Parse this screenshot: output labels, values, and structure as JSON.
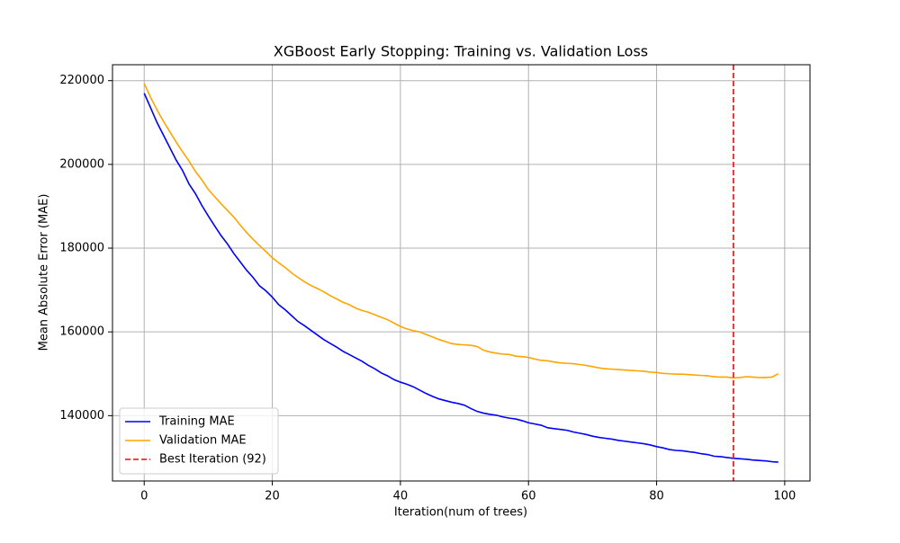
{
  "chart_data": {
    "type": "line",
    "title": "XGBoost Early Stopping: Training vs. Validation Loss",
    "xlabel": "Iteration(num of trees)",
    "ylabel": "Mean Absolute Error (MAE)",
    "x": [
      0,
      1,
      2,
      3,
      4,
      5,
      6,
      7,
      8,
      9,
      10,
      11,
      12,
      13,
      14,
      15,
      16,
      17,
      18,
      19,
      20,
      21,
      22,
      23,
      24,
      25,
      26,
      27,
      28,
      29,
      30,
      31,
      32,
      33,
      34,
      35,
      36,
      37,
      38,
      39,
      40,
      41,
      42,
      43,
      44,
      45,
      46,
      47,
      48,
      49,
      50,
      51,
      52,
      53,
      54,
      55,
      56,
      57,
      58,
      59,
      60,
      61,
      62,
      63,
      64,
      65,
      66,
      67,
      68,
      69,
      70,
      71,
      72,
      73,
      74,
      75,
      76,
      77,
      78,
      79,
      80,
      81,
      82,
      83,
      84,
      85,
      86,
      87,
      88,
      89,
      90,
      91,
      92,
      93,
      94,
      95,
      96,
      97,
      98,
      99
    ],
    "series": [
      {
        "name": "Training MAE",
        "color": "#0000ff",
        "values": [
          217000,
          213500,
          210000,
          207000,
          204000,
          201000,
          198500,
          195300,
          193000,
          190200,
          187700,
          185300,
          183000,
          181000,
          178700,
          176700,
          174700,
          173000,
          171000,
          169800,
          168300,
          166500,
          165300,
          163900,
          162500,
          161500,
          160400,
          159300,
          158200,
          157300,
          156400,
          155400,
          154600,
          153800,
          153000,
          152000,
          151200,
          150200,
          149500,
          148600,
          148000,
          147500,
          146900,
          146100,
          145300,
          144600,
          144000,
          143600,
          143200,
          142900,
          142500,
          141700,
          141000,
          140600,
          140300,
          140100,
          139700,
          139400,
          139200,
          138800,
          138300,
          138000,
          137700,
          137100,
          136900,
          136700,
          136500,
          136100,
          135800,
          135500,
          135100,
          134800,
          134600,
          134400,
          134100,
          133900,
          133700,
          133500,
          133300,
          133000,
          132600,
          132300,
          131900,
          131700,
          131600,
          131400,
          131200,
          130900,
          130700,
          130300,
          130200,
          130000,
          129800,
          129700,
          129600,
          129400,
          129300,
          129200,
          129000,
          128900
        ]
      },
      {
        "name": "Validation MAE",
        "color": "#ffa500",
        "values": [
          219300,
          216000,
          213000,
          210300,
          207800,
          205300,
          203000,
          200800,
          198300,
          196300,
          194000,
          192300,
          190600,
          189000,
          187400,
          185500,
          183700,
          182100,
          180600,
          179200,
          177700,
          176500,
          175400,
          174100,
          173000,
          172000,
          171100,
          170400,
          169600,
          168700,
          167900,
          167100,
          166500,
          165700,
          165100,
          164700,
          164100,
          163500,
          162900,
          162100,
          161300,
          160700,
          160300,
          160000,
          159400,
          158800,
          158200,
          157700,
          157200,
          157000,
          156900,
          156800,
          156500,
          155600,
          155200,
          154900,
          154700,
          154600,
          154200,
          154100,
          153900,
          153500,
          153200,
          153100,
          152800,
          152600,
          152500,
          152400,
          152200,
          152000,
          151700,
          151400,
          151200,
          151100,
          151000,
          150900,
          150800,
          150700,
          150600,
          150400,
          150300,
          150100,
          150000,
          149900,
          149900,
          149800,
          149700,
          149600,
          149500,
          149300,
          149200,
          149200,
          149000,
          149100,
          149300,
          149200,
          149100,
          149100,
          149200,
          150000
        ]
      }
    ],
    "vlines": [
      {
        "x": 92,
        "color": "#ff0000",
        "label": "Best Iteration (92)"
      }
    ],
    "xlim": [
      -4.95,
      103.95
    ],
    "xticks": [
      0,
      20,
      40,
      60,
      80,
      100
    ],
    "ylim": [
      124400,
      223800
    ],
    "yticks": [
      140000,
      160000,
      180000,
      200000,
      220000
    ],
    "grid": true,
    "legend": "lower left"
  }
}
